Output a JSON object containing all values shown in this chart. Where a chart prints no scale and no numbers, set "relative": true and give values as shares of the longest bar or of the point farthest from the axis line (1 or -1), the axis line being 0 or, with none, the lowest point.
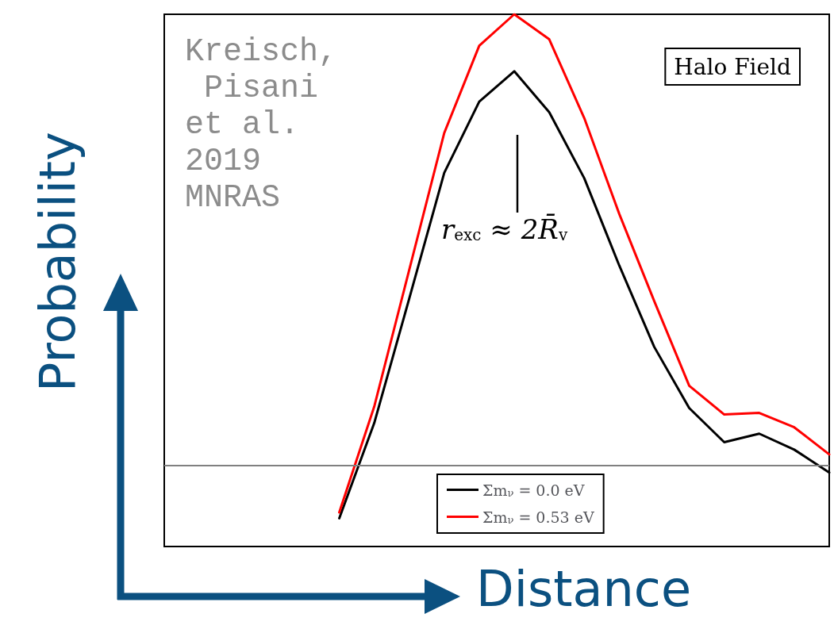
{
  "chart_data": {
    "type": "line",
    "relative": true,
    "xlabel": "Distance",
    "ylabel": "Probability",
    "categories": [
      null,
      null,
      null,
      null,
      null,
      null,
      null,
      null,
      null,
      null,
      null,
      null,
      null,
      null,
      null,
      null,
      null,
      null,
      null,
      null
    ],
    "series": [
      {
        "name": "Σm$_{ν}$ = 0.0 eV",
        "color": "#000000",
        "values": [
          null,
          null,
          null,
          null,
          null,
          0.053,
          0.232,
          0.466,
          0.702,
          0.836,
          0.893,
          0.816,
          0.692,
          0.528,
          0.375,
          0.26,
          0.196,
          0.212,
          0.182,
          0.139
        ]
      },
      {
        "name": "Σm$_{ν}$ = 0.53 eV",
        "color": "#ff0000",
        "values": [
          null,
          null,
          null,
          null,
          null,
          0.064,
          0.263,
          0.52,
          0.777,
          0.941,
          1,
          0.953,
          0.805,
          0.625,
          0.461,
          0.302,
          0.248,
          0.251,
          0.224,
          0.173
        ]
      }
    ],
    "ref_lines": [
      {
        "axis": "y",
        "value": 0.153,
        "color": "#808080"
      }
    ],
    "annotations": [
      "Kreisch, Pisani et al. 2019 MNRAS",
      "r$_{exc}$ ≈ 2R̄$_{v}$",
      "Halo Field"
    ],
    "legend": "bottom",
    "marker": "none",
    "line_style": "solid",
    "grid": false
  }
}
